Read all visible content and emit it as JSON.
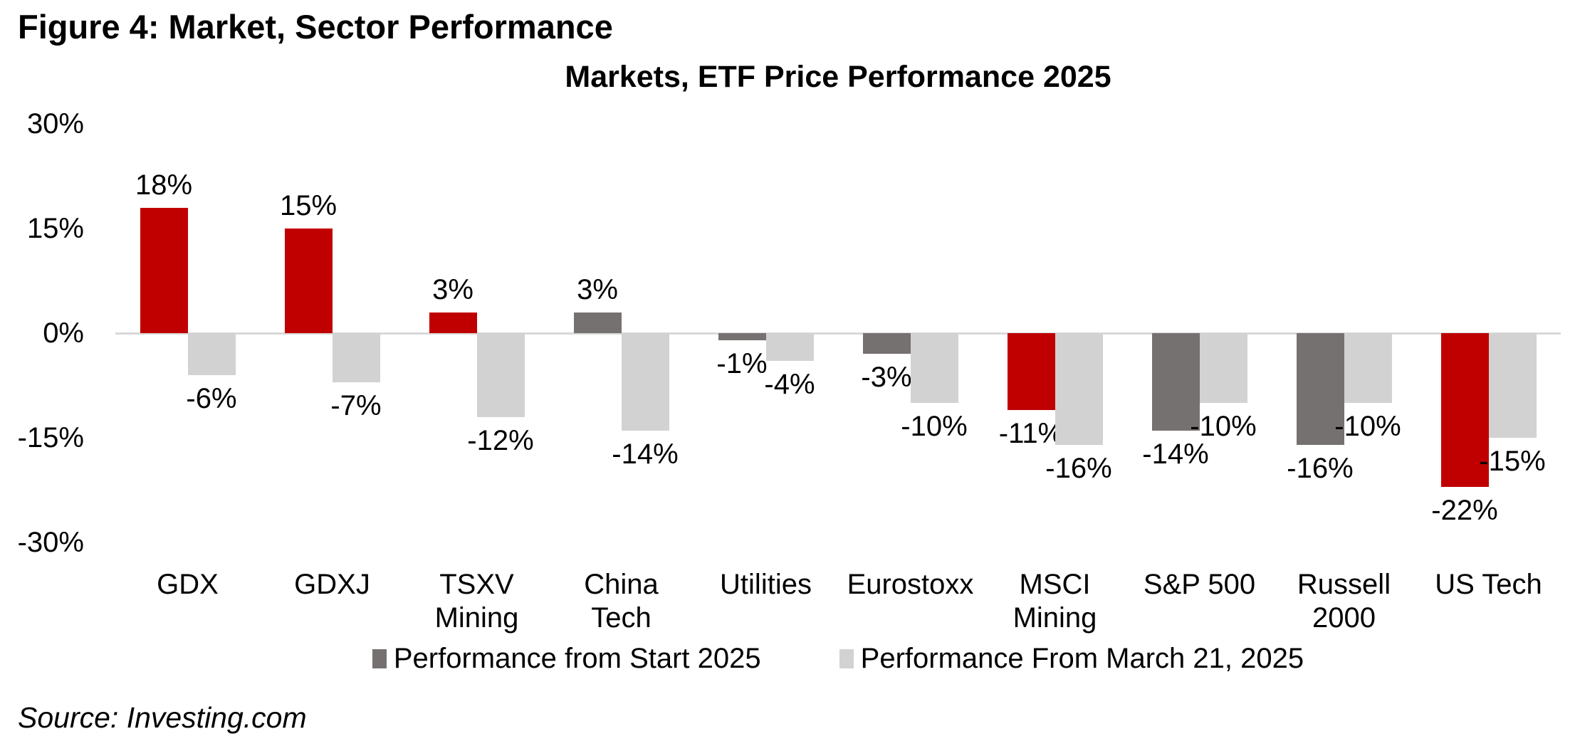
{
  "figure": {
    "title": "Figure 4: Market, Sector Performance",
    "source": "Source: Investing.com"
  },
  "colors": {
    "highlight_red": "#C00000",
    "dark_gray": "#767171",
    "light_gray": "#D2D2D2",
    "axis_gray": "#D9D9D9",
    "text": "#000000"
  },
  "chart_data": {
    "type": "bar",
    "title": "Markets, ETF Price Performance 2025",
    "categories": [
      "GDX",
      "GDXJ",
      "TSXV Mining",
      "China Tech",
      "Utilities",
      "Eurostoxx",
      "MSCI Mining",
      "S&P 500",
      "Russell 2000",
      "US Tech"
    ],
    "series": [
      {
        "name": "Performance from Start 2025",
        "default_color": "#767171",
        "values": [
          18,
          15,
          3,
          3,
          -1,
          -3,
          -11,
          -14,
          -16,
          -22
        ],
        "point_colors": [
          "#C00000",
          "#C00000",
          "#C00000",
          "#767171",
          "#767171",
          "#767171",
          "#C00000",
          "#767171",
          "#767171",
          "#C00000"
        ],
        "labels": [
          "18%",
          "15%",
          "3%",
          "3%",
          "-1%",
          "-3%",
          "-11%",
          "-14%",
          "-16%",
          "-22%"
        ]
      },
      {
        "name": "Performance From March 21, 2025",
        "default_color": "#D2D2D2",
        "values": [
          -6,
          -7,
          -12,
          -14,
          -4,
          -10,
          -16,
          -10,
          -10,
          -15
        ],
        "labels": [
          "-6%",
          "-7%",
          "-12%",
          "-14%",
          "-4%",
          "-10%",
          "-16%",
          "-10%",
          "-10%",
          "-15%"
        ]
      }
    ],
    "data_labels": true,
    "label_format": "{v}%",
    "y_axis": {
      "min": -30,
      "max": 30,
      "tick_step": 15,
      "tick_labels": [
        "30%",
        "15%",
        "0%",
        "-15%",
        "-30%"
      ]
    },
    "grid": false,
    "legend_position": "bottom"
  }
}
